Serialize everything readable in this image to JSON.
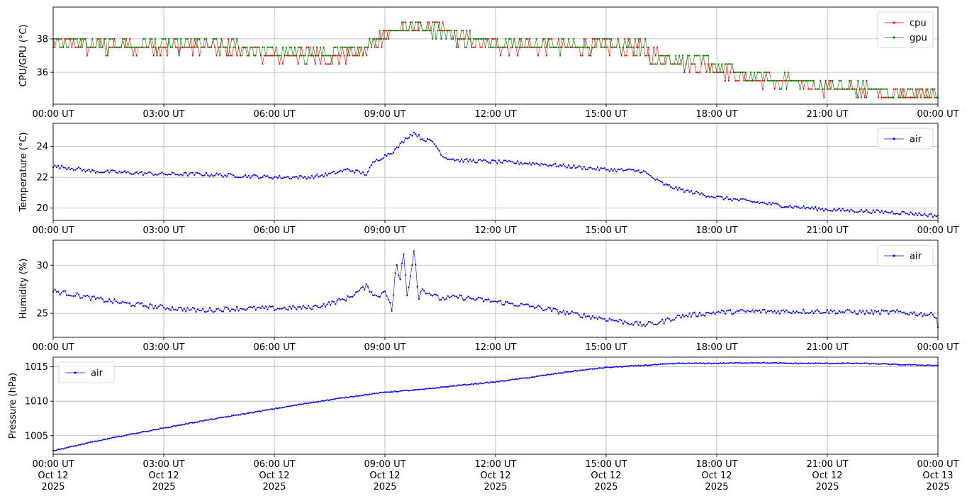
{
  "chart_data": [
    {
      "type": "line",
      "ylabel": "CPU/GPU (°C)",
      "ylim": [
        34.1,
        39.9
      ],
      "yticks": [
        36,
        38
      ],
      "xlim": [
        0,
        24
      ],
      "xtick_labels": [
        "00:00 UT",
        "03:00 UT",
        "06:00 UT",
        "09:00 UT",
        "12:00 UT",
        "15:00 UT",
        "18:00 UT",
        "21:00 UT",
        "00:00 UT"
      ],
      "grid": true,
      "legend_position": "top-right",
      "series": [
        {
          "name": "cpu",
          "color": "#ff0000",
          "x": [
            0,
            0.5,
            1,
            2,
            3,
            4,
            5,
            6,
            7,
            8,
            8.5,
            9,
            9.5,
            10,
            10.5,
            11,
            11.5,
            12,
            13,
            14,
            15,
            16,
            16.3,
            17,
            18,
            18.5,
            19,
            20,
            21,
            22,
            22.5,
            23,
            24
          ],
          "y": [
            37.8,
            37.6,
            37.5,
            37.5,
            37.5,
            37.5,
            37.4,
            37.0,
            37.0,
            37.0,
            37.4,
            38.3,
            38.6,
            38.8,
            38.6,
            38.0,
            37.8,
            37.6,
            37.6,
            37.5,
            37.5,
            37.4,
            37.0,
            36.6,
            36.4,
            35.8,
            35.6,
            35.4,
            35.1,
            34.9,
            34.8,
            34.7,
            34.6
          ]
        },
        {
          "name": "gpu",
          "color": "#008000",
          "x": [
            0,
            0.5,
            1,
            2,
            3,
            4,
            5,
            6,
            7,
            8,
            8.5,
            9,
            9.5,
            10,
            10.5,
            11,
            11.5,
            12,
            13,
            14,
            15,
            16,
            16.3,
            17,
            18,
            18.5,
            19,
            20,
            21,
            22,
            22.5,
            23,
            24
          ],
          "y": [
            37.9,
            37.7,
            37.6,
            37.6,
            37.6,
            37.6,
            37.5,
            37.1,
            37.1,
            37.1,
            37.6,
            38.4,
            38.7,
            38.7,
            38.6,
            38.1,
            37.9,
            37.7,
            37.7,
            37.6,
            37.6,
            37.5,
            37.0,
            36.7,
            36.5,
            35.9,
            35.7,
            35.5,
            35.2,
            35.0,
            34.9,
            34.8,
            34.7
          ]
        }
      ]
    },
    {
      "type": "line",
      "ylabel": "Temperature (°C)",
      "ylim": [
        19.2,
        25.5
      ],
      "yticks": [
        20,
        22,
        24
      ],
      "xlim": [
        0,
        24
      ],
      "xtick_labels": [
        "00:00 UT",
        "03:00 UT",
        "06:00 UT",
        "09:00 UT",
        "12:00 UT",
        "15:00 UT",
        "18:00 UT",
        "21:00 UT",
        "00:00 UT"
      ],
      "grid": true,
      "legend_position": "top-right",
      "series": [
        {
          "name": "air",
          "color": "#0000ff",
          "x": [
            0,
            0.5,
            1,
            2,
            3,
            4,
            5,
            6,
            7,
            7.5,
            8,
            8.5,
            8.7,
            9,
            9.3,
            9.6,
            9.8,
            10,
            10.3,
            10.6,
            11,
            12,
            13,
            14,
            15,
            16,
            16.3,
            16.6,
            17,
            18,
            19,
            20,
            21,
            22,
            23,
            24
          ],
          "y": [
            22.7,
            22.6,
            22.4,
            22.3,
            22.2,
            22.2,
            22.1,
            22.0,
            22.0,
            22.2,
            22.5,
            22.2,
            23.0,
            23.4,
            23.8,
            24.6,
            24.9,
            24.5,
            24.3,
            23.3,
            23.1,
            23.0,
            22.9,
            22.7,
            22.5,
            22.4,
            21.9,
            21.5,
            21.2,
            20.7,
            20.4,
            20.1,
            19.9,
            19.8,
            19.7,
            19.5
          ]
        }
      ]
    },
    {
      "type": "line",
      "ylabel": "Humidity (%)",
      "ylim": [
        22.5,
        32.6
      ],
      "yticks": [
        25,
        30
      ],
      "xlim": [
        0,
        24
      ],
      "xtick_labels": [
        "00:00 UT",
        "03:00 UT",
        "06:00 UT",
        "09:00 UT",
        "12:00 UT",
        "15:00 UT",
        "18:00 UT",
        "21:00 UT",
        "00:00 UT"
      ],
      "grid": true,
      "legend_position": "top-right",
      "series": [
        {
          "name": "air",
          "color": "#0000ff",
          "x": [
            0,
            0.5,
            1,
            2,
            3,
            4,
            5,
            6,
            7,
            7.5,
            8,
            8.5,
            8.8,
            9,
            9.2,
            9.3,
            9.4,
            9.5,
            9.6,
            9.7,
            9.8,
            9.9,
            10,
            10.5,
            11,
            12,
            13,
            14,
            15,
            16,
            16.4,
            17,
            18,
            19,
            20,
            21,
            22,
            23,
            23.95,
            24
          ],
          "y": [
            27.3,
            27.0,
            26.6,
            26.0,
            25.6,
            25.3,
            25.5,
            25.5,
            25.6,
            26.0,
            26.6,
            27.8,
            26.6,
            27.5,
            25.2,
            30.5,
            28.0,
            31.5,
            27.0,
            29.0,
            32.0,
            26.5,
            27.5,
            26.5,
            26.7,
            26.2,
            25.7,
            25.0,
            24.4,
            23.8,
            24.0,
            24.7,
            25.1,
            25.2,
            25.2,
            25.2,
            25.1,
            25.1,
            24.8,
            23.6
          ]
        }
      ]
    },
    {
      "type": "line",
      "ylabel": "Pressure (hPa)",
      "ylim": [
        1002.3,
        1016.4
      ],
      "yticks": [
        1005,
        1010,
        1015
      ],
      "xlim": [
        0,
        24
      ],
      "xtick_labels": [
        "00:00 UT\nOct 12\n2025",
        "03:00 UT\nOct 12\n2025",
        "06:00 UT\nOct 12\n2025",
        "09:00 UT\nOct 12\n2025",
        "12:00 UT\nOct 12\n2025",
        "15:00 UT\nOct 12\n2025",
        "18:00 UT\nOct 12\n2025",
        "21:00 UT\nOct 12\n2025",
        "00:00 UT\nOct 13\n2025"
      ],
      "grid": true,
      "legend_position": "top-left",
      "series": [
        {
          "name": "air",
          "color": "#0000ff",
          "x": [
            0,
            1,
            2,
            3,
            4,
            5,
            6,
            7,
            8,
            9,
            10,
            11,
            12,
            13,
            14,
            15,
            16,
            17,
            18,
            19,
            20,
            21,
            22,
            23,
            24
          ],
          "y": [
            1002.8,
            1004.0,
            1005.1,
            1006.1,
            1007.1,
            1008.0,
            1008.9,
            1009.8,
            1010.6,
            1011.3,
            1011.7,
            1012.3,
            1012.8,
            1013.5,
            1014.3,
            1014.9,
            1015.2,
            1015.5,
            1015.5,
            1015.6,
            1015.5,
            1015.5,
            1015.5,
            1015.3,
            1015.2
          ]
        }
      ]
    }
  ]
}
